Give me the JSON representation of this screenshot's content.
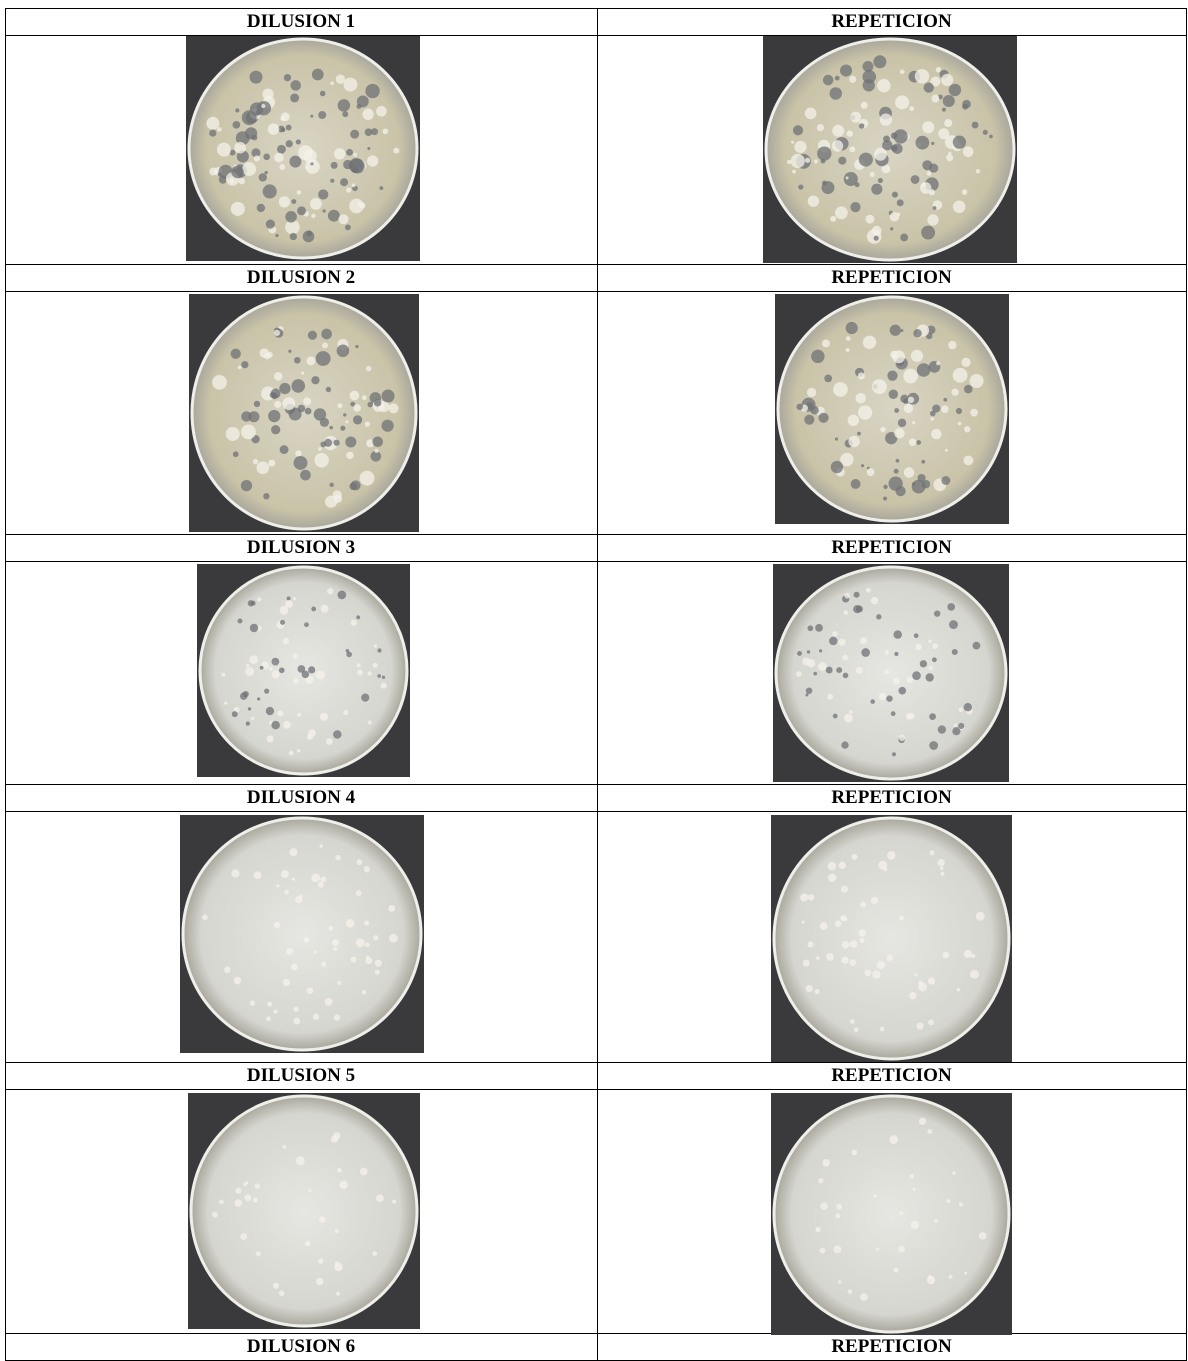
{
  "table": {
    "rows": [
      [
        "DILUSION 1",
        "REPETICION"
      ],
      [
        "DILUSION 2",
        "REPETICION"
      ],
      [
        "DILUSION 3",
        "REPETICION"
      ],
      [
        "DILUSION 4",
        "REPETICION"
      ],
      [
        "DILUSION 5",
        "REPETICION"
      ],
      [
        "DILUSION 6",
        "REPETICION"
      ]
    ]
  }
}
